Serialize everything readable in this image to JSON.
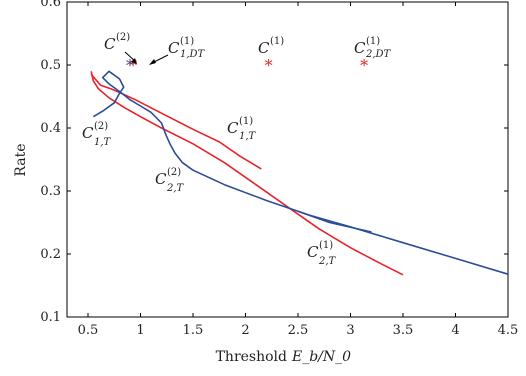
{
  "chart_data": {
    "type": "line",
    "xlabel": "Threshold",
    "xlabel_math": "E_b/N_0",
    "ylabel": "Rate",
    "xlim": [
      0.3,
      4.5
    ],
    "ylim": [
      0.1,
      0.6
    ],
    "x_ticks": [
      0.5,
      1,
      1.5,
      2,
      2.5,
      3,
      3.5,
      4,
      4.5
    ],
    "x_tick_labels": [
      "0.5",
      "1",
      "1.5",
      "2",
      "2.5",
      "3",
      "3.5",
      "4",
      "4.5"
    ],
    "y_ticks": [
      0.1,
      0.2,
      0.3,
      0.4,
      0.5,
      0.6
    ],
    "y_tick_labels": [
      "0.1",
      "0.2",
      "0.3",
      "0.4",
      "0.5",
      "0.6"
    ],
    "grid": false,
    "colors": {
      "red": "#e8232a",
      "blue": "#2a4d9a",
      "axis": "#000000"
    },
    "series": [
      {
        "id": "c1T",
        "color": "red",
        "x": [
          0.53,
          0.62,
          0.72,
          0.82,
          0.95,
          1.1,
          1.3,
          1.5,
          1.75,
          1.95,
          2.15
        ],
        "y": [
          0.485,
          0.468,
          0.462,
          0.455,
          0.445,
          0.432,
          0.415,
          0.398,
          0.378,
          0.355,
          0.335
        ]
      },
      {
        "id": "c2T_red",
        "color": "red",
        "x": [
          0.53,
          0.55,
          0.6,
          0.7,
          0.85,
          1.0,
          1.2,
          1.5,
          1.8,
          2.1,
          2.4,
          2.7,
          3.0,
          3.25,
          3.5
        ],
        "y": [
          0.49,
          0.475,
          0.462,
          0.448,
          0.432,
          0.418,
          0.4,
          0.375,
          0.345,
          0.31,
          0.275,
          0.24,
          0.21,
          0.188,
          0.167
        ]
      },
      {
        "id": "c2T_blue",
        "color": "blue",
        "x": [
          0.55,
          0.65,
          0.75,
          0.8,
          0.84,
          0.8,
          0.7,
          0.64,
          0.7,
          0.8,
          0.9,
          1.0,
          1.1,
          1.2,
          1.24,
          1.28,
          1.33,
          1.4,
          1.5,
          1.8,
          2.2,
          2.6,
          3.0,
          3.5,
          4.0,
          4.5
        ],
        "y": [
          0.418,
          0.428,
          0.44,
          0.455,
          0.465,
          0.478,
          0.49,
          0.48,
          0.47,
          0.458,
          0.445,
          0.435,
          0.425,
          0.408,
          0.39,
          0.375,
          0.36,
          0.345,
          0.333,
          0.31,
          0.285,
          0.262,
          0.243,
          0.218,
          0.193,
          0.168
        ]
      },
      {
        "id": "c2T_blue_tail",
        "color": "blue",
        "x": [
          2.5,
          2.8,
          3.2
        ],
        "y": [
          0.268,
          0.25,
          0.235
        ]
      }
    ],
    "markers": [
      {
        "x": 0.9,
        "y": 0.5,
        "color": "blue",
        "symbol": "*"
      },
      {
        "x": 0.93,
        "y": 0.5,
        "color": "red",
        "symbol": "*"
      },
      {
        "x": 2.22,
        "y": 0.5,
        "color": "red",
        "symbol": "*"
      },
      {
        "x": 3.13,
        "y": 0.5,
        "color": "red",
        "symbol": "*"
      }
    ],
    "annotations": [
      {
        "id": "ann-c2",
        "main": "C",
        "sup": "(2)",
        "sub": ""
      },
      {
        "id": "ann-c1dt",
        "main": "C",
        "sup": "(1)",
        "sub": "1,DT"
      },
      {
        "id": "ann-c1",
        "main": "C",
        "sup": "(1)",
        "sub": ""
      },
      {
        "id": "ann-c2dt",
        "main": "C",
        "sup": "(1)",
        "sub": "2,DT"
      },
      {
        "id": "ann-c21T",
        "main": "C",
        "sup": "(2)",
        "sub": "1,T"
      },
      {
        "id": "ann-c11T",
        "main": "C",
        "sup": "(1)",
        "sub": "1,T"
      },
      {
        "id": "ann-c22T",
        "main": "C",
        "sup": "(2)",
        "sub": "2,T"
      },
      {
        "id": "ann-c12T",
        "main": "C",
        "sup": "(1)",
        "sub": "2,T"
      }
    ]
  }
}
